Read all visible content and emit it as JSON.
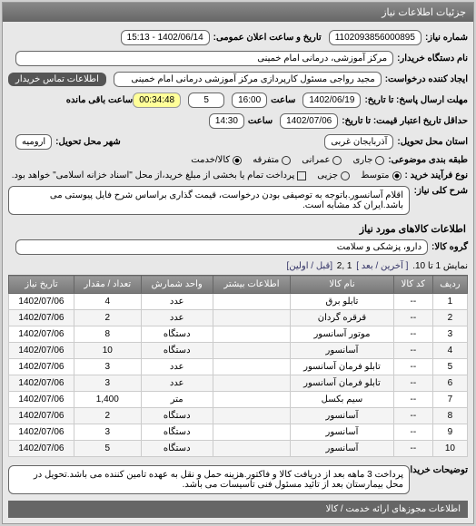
{
  "header": {
    "title": "جزئیات اطلاعات نیاز"
  },
  "fields": {
    "req_no_label": "شماره نیاز:",
    "req_no": "1102093856000895",
    "pub_date_label": "تاریخ و ساعت اعلان عمومی:",
    "pub_date": "1402/06/14 - 15:13",
    "buyer_label": "نام دستگاه خریدار:",
    "buyer": "مرکز آموزشی، درمانی امام خمینی",
    "creator_label": "ایجاد کننده درخواست:",
    "creator": "مجید رواجی مسئول کارپردازی مرکز آموزشی درمانی امام خمینی",
    "contact_btn": "اطلاعات تماس خریدار",
    "deadline_label": "مهلت ارسال پاسخ: تا تاریخ:",
    "deadline_date": "1402/06/19",
    "time_label": "ساعت",
    "deadline_time": "16:00",
    "remaining_num": "5",
    "timer": "00:34:48",
    "remaining_label": "ساعت باقی مانده",
    "validity_label": "حداقل تاریخ اعتبار قیمت: تا تاریخ:",
    "validity_date": "1402/07/06",
    "validity_time": "14:30",
    "province_label": "استان محل تحویل:",
    "province": "آذربایجان غربی",
    "city_label": "شهر محل تحویل:",
    "city": "ارومیه",
    "budget_label": "طبقه بندی موضوعی:",
    "budget_opts": {
      "a": "جاری",
      "b": "عمرانی",
      "c": "متفرقه",
      "d": "کالا/خدمت"
    },
    "buy_type_label": "نوع فرآیند خرید :",
    "buy_opt_a": "متوسط",
    "buy_opt_b": "جزیی",
    "buy_note": "پرداخت تمام یا بخشی از مبلغ خرید،از محل \"اسناد خزانه اسلامی\" خواهد بود.",
    "desc_label": "شرح کلی نیاز:",
    "desc": "اقلام آسانسور.باتوجه به توصیفی بودن درخواست، قیمت گذاری براساس شرح فایل پیوستی می باشد.ایران کد مشابه است.",
    "goods_section": "اطلاعات کالاهای مورد نیاز",
    "group_label": "گروه کالا:",
    "group": "دارو، پزشکی و سلامت",
    "pager_text": "نمایش 1 تا 10.",
    "pager_last": "[ آخرین / بعد ]",
    "pager_nums": "1 ,2",
    "pager_first": "[قبل / اولین]",
    "expl_label": "توضیحات خریدار:",
    "expl": "پرداخت 3 ماهه بعد از دریافت کالا و فاکتور.هزینه حمل و نقل به عهده تامین کننده می باشد.تحویل در محل بیمارستان بعد از تائید مسئول فنی تاسیسات می باشد.",
    "footer_bar": "اطلاعات مجوزهای ارائه خدمت / کالا"
  },
  "table": {
    "cols": [
      "ردیف",
      "کد کالا",
      "نام کالا",
      "اطلاعات بیشتر",
      "واحد شمارش",
      "تعداد / مقدار",
      "تاریخ نیاز"
    ],
    "rows": [
      [
        "1",
        "--",
        "تابلو برق",
        "",
        "عدد",
        "4",
        "1402/07/06"
      ],
      [
        "2",
        "--",
        "قرقره گردان",
        "",
        "عدد",
        "2",
        "1402/07/06"
      ],
      [
        "3",
        "--",
        "موتور آسانسور",
        "",
        "دستگاه",
        "8",
        "1402/07/06"
      ],
      [
        "4",
        "--",
        "آسانسور",
        "",
        "دستگاه",
        "10",
        "1402/07/06"
      ],
      [
        "5",
        "--",
        "تابلو فرمان آسانسور",
        "",
        "عدد",
        "3",
        "1402/07/06"
      ],
      [
        "6",
        "--",
        "تابلو فرمان آسانسور",
        "",
        "عدد",
        "3",
        "1402/07/06"
      ],
      [
        "7",
        "--",
        "سیم بکسل",
        "",
        "متر",
        "1,400",
        "1402/07/06"
      ],
      [
        "8",
        "--",
        "آسانسور",
        "",
        "دستگاه",
        "2",
        "1402/07/06"
      ],
      [
        "9",
        "--",
        "آسانسور",
        "",
        "دستگاه",
        "3",
        "1402/07/06"
      ],
      [
        "10",
        "--",
        "آسانسور",
        "",
        "دستگاه",
        "5",
        "1402/07/06"
      ]
    ]
  }
}
